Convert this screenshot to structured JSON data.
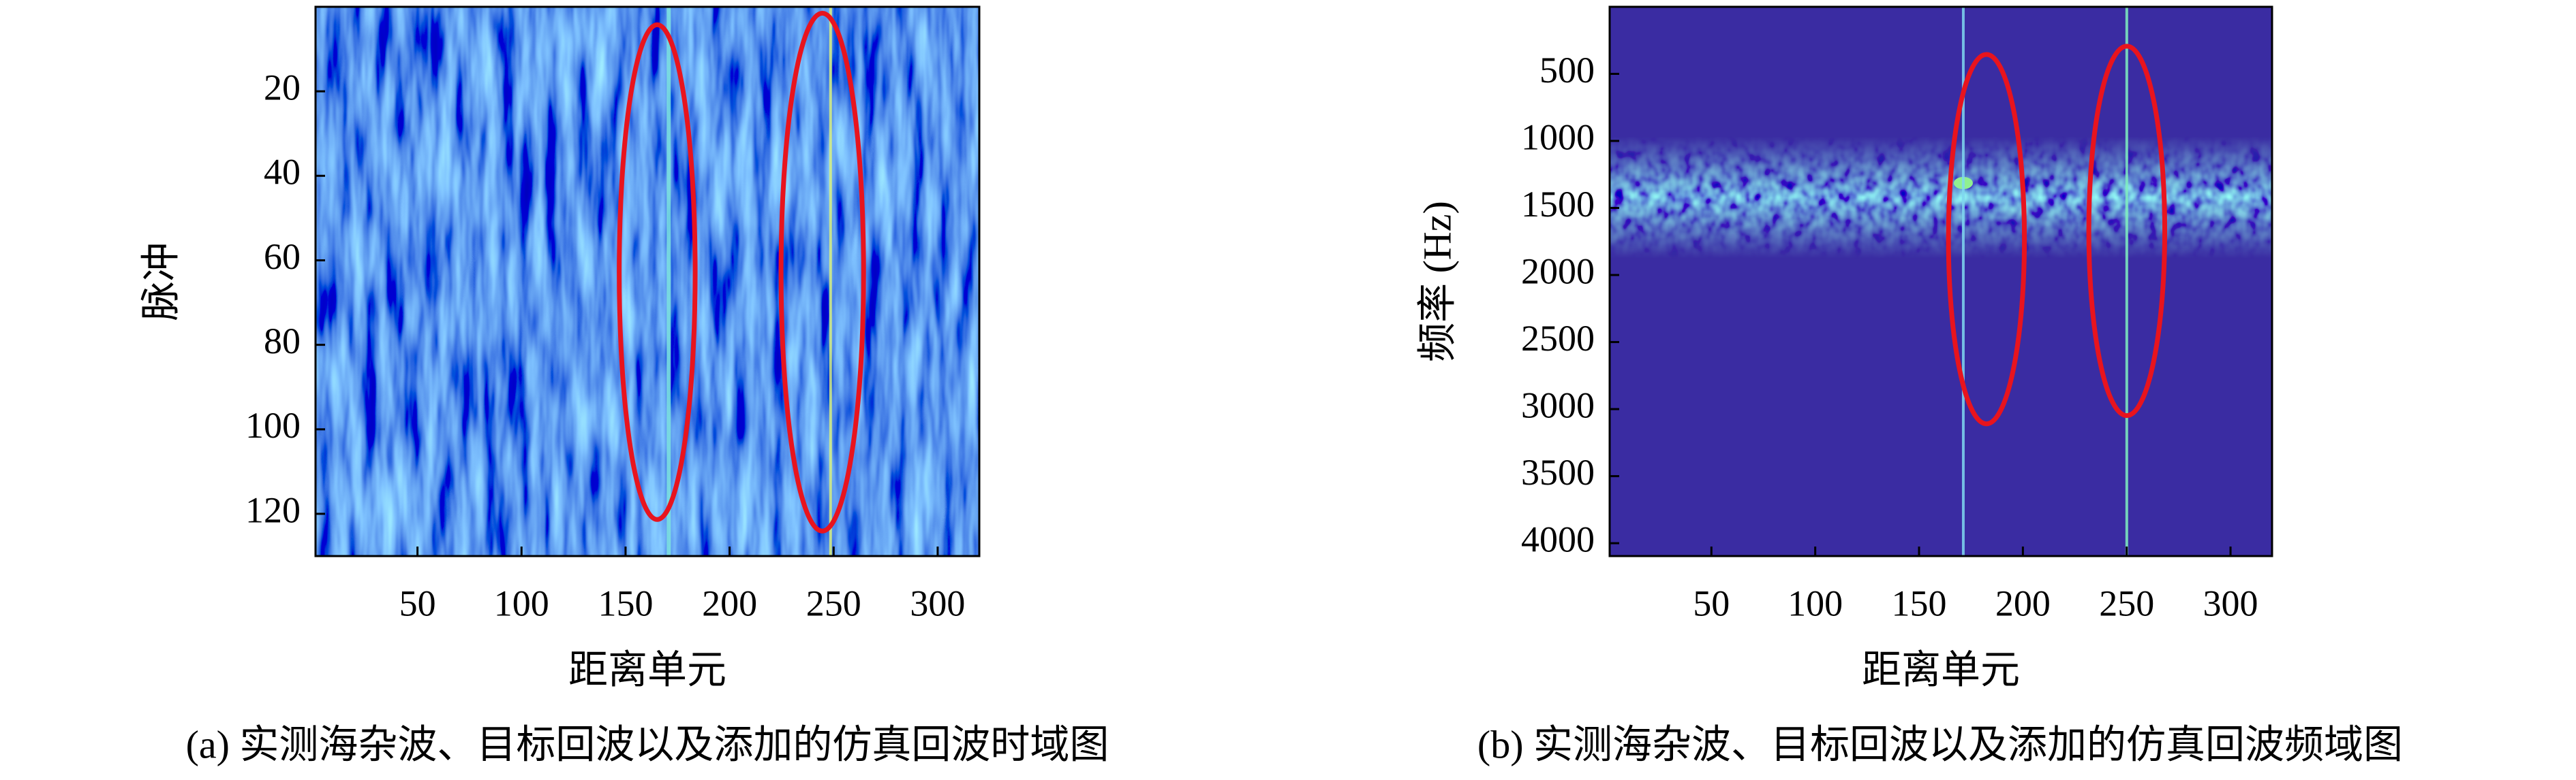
{
  "chart_data": [
    {
      "type": "heatmap",
      "xlabel": "距离单元",
      "ylabel": "脉冲",
      "caption": "(a) 实测海杂波、目标回波以及添加的仿真回波时域图",
      "xlim": [
        1,
        320
      ],
      "ylim": [
        0,
        130
      ],
      "y_inverted": true,
      "xticks": [
        50,
        100,
        150,
        200,
        250,
        300
      ],
      "yticks": [
        20,
        40,
        60,
        80,
        100,
        120
      ]
    },
    {
      "type": "heatmap",
      "xlabel": "距离单元",
      "ylabel": "频率 (Hz)",
      "caption": "(b) 实测海杂波、目标回波以及添加的仿真回波频域图",
      "xlim": [
        1,
        320
      ],
      "ylim": [
        0,
        4096
      ],
      "y_inverted": true,
      "xticks": [
        50,
        100,
        150,
        200,
        250,
        300
      ],
      "yticks": [
        500,
        1000,
        1500,
        2000,
        2500,
        3000,
        3500,
        4000
      ]
    }
  ]
}
